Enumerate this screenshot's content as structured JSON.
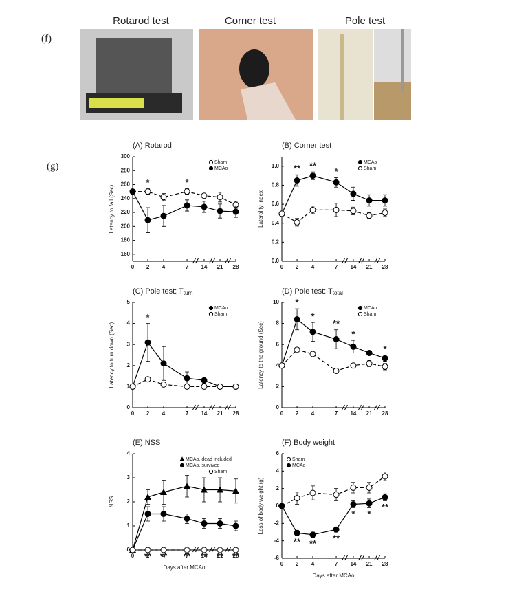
{
  "panel_labels": [
    "(f)",
    "(g)"
  ],
  "photos": [
    {
      "label": "Rotarod test"
    },
    {
      "label": "Corner test"
    },
    {
      "label": "Pole test"
    }
  ],
  "chart_data": [
    {
      "type": "line",
      "title": "(A) Rotarod",
      "ylabel": "Latency to fall (Sec)",
      "categories": [
        "0",
        "2",
        "4",
        "7",
        "14",
        "21",
        "28"
      ],
      "ylim": [
        150,
        300
      ],
      "yticks": [
        160,
        180,
        200,
        220,
        240,
        260,
        280,
        300
      ],
      "legend": "upper right",
      "series": [
        {
          "name": "Sham",
          "color": "#000000",
          "marker": "circle-open",
          "dashed": true,
          "values": [
            250,
            250,
            242,
            250,
            244,
            242,
            231
          ],
          "errors": [
            0,
            4,
            5,
            4,
            3,
            7,
            5
          ]
        },
        {
          "name": "MCAo",
          "color": "#000000",
          "marker": "circle-filled",
          "dashed": false,
          "values": [
            250,
            209,
            215,
            230,
            228,
            222,
            221
          ],
          "errors": [
            0,
            18,
            15,
            8,
            8,
            10,
            8
          ]
        }
      ],
      "significance": [
        null,
        "*",
        null,
        "*",
        null,
        null,
        null
      ],
      "significance_position": "above"
    },
    {
      "type": "line",
      "title": "(B) Corner test",
      "ylabel": "Laterality index",
      "categories": [
        "0",
        "2",
        "4",
        "7",
        "14",
        "21",
        "28"
      ],
      "ylim": [
        0,
        1.1
      ],
      "yticks": [
        {
          "value": 0,
          "label": "0.0"
        },
        0.2,
        0.4,
        0.6,
        0.8,
        {
          "value": 1,
          "label": "1.0"
        }
      ],
      "legend": "upper right",
      "series": [
        {
          "name": "MCAo",
          "color": "#000000",
          "marker": "circle-filled",
          "dashed": false,
          "values": [
            0.5,
            0.85,
            0.9,
            0.83,
            0.71,
            0.64,
            0.64
          ],
          "errors": [
            0,
            0.06,
            0.04,
            0.05,
            0.07,
            0.06,
            0.06
          ]
        },
        {
          "name": "Sham",
          "color": "#000000",
          "marker": "circle-open",
          "dashed": true,
          "values": [
            0.5,
            0.41,
            0.54,
            0.54,
            0.53,
            0.48,
            0.51
          ],
          "errors": [
            0,
            0.04,
            0.04,
            0.07,
            0.04,
            0.03,
            0.04
          ]
        }
      ],
      "significance": [
        null,
        "**",
        "**",
        "*",
        null,
        null,
        null
      ],
      "significance_position": "above"
    },
    {
      "type": "line",
      "title": "(C) Pole test: T",
      "title_subscript": "turn",
      "ylabel": "Latency to turn down (Sec)",
      "categories": [
        "0",
        "2",
        "4",
        "7",
        "14",
        "21",
        "28"
      ],
      "ylim": [
        0,
        5
      ],
      "yticks": [
        0,
        1,
        2,
        3,
        4,
        5
      ],
      "legend": "upper right",
      "series": [
        {
          "name": "MCAo",
          "color": "#000000",
          "marker": "circle-filled",
          "dashed": false,
          "values": [
            1,
            3.1,
            2.1,
            1.4,
            1.3,
            1.0,
            1.0
          ],
          "errors": [
            0,
            0.9,
            0.8,
            0.3,
            0.15,
            0.1,
            0
          ]
        },
        {
          "name": "Sham",
          "color": "#000000",
          "marker": "circle-open",
          "dashed": true,
          "values": [
            1,
            1.35,
            1.1,
            1.0,
            1.0,
            1.0,
            1.0
          ],
          "errors": [
            0,
            0.1,
            0.05,
            0.05,
            0.05,
            0.05,
            0
          ]
        }
      ],
      "significance": [
        null,
        "*",
        null,
        null,
        null,
        null,
        null
      ],
      "significance_position": "above"
    },
    {
      "type": "line",
      "title": "(D) Pole test: T",
      "title_subscript": "total",
      "ylabel": "Latency to the ground (Sec)",
      "categories": [
        "0",
        "2",
        "4",
        "7",
        "14",
        "21",
        "28"
      ],
      "ylim": [
        0,
        10
      ],
      "yticks": [
        0,
        2,
        4,
        6,
        8,
        10
      ],
      "legend": "upper right",
      "series": [
        {
          "name": "MCAo",
          "color": "#000000",
          "marker": "circle-filled",
          "dashed": false,
          "values": [
            4,
            8.4,
            7.2,
            6.5,
            5.8,
            5.2,
            4.7
          ],
          "errors": [
            0,
            1,
            0.9,
            0.9,
            0.6,
            0.2,
            0.3
          ]
        },
        {
          "name": "Sham",
          "color": "#000000",
          "marker": "circle-open",
          "dashed": true,
          "values": [
            4,
            5.5,
            5.1,
            3.5,
            4.0,
            4.2,
            3.9
          ],
          "errors": [
            0,
            0.2,
            0.3,
            0.2,
            0.2,
            0.3,
            0.3
          ]
        }
      ],
      "significance": [
        null,
        "*",
        "*",
        "**",
        "*",
        null,
        "*"
      ],
      "significance_position": "above"
    },
    {
      "type": "line",
      "title": "(E) NSS",
      "ylabel": "NSS",
      "xlabel": "Days after MCAo",
      "categories": [
        "0",
        "2",
        "4",
        "7",
        "14",
        "21",
        "28"
      ],
      "ylim": [
        0,
        4
      ],
      "yticks": [
        0,
        1,
        2,
        3,
        4
      ],
      "legend": "upper right",
      "series": [
        {
          "name": "MCAo, dead included",
          "color": "#000000",
          "marker": "triangle",
          "dashed": false,
          "values": [
            0,
            2.2,
            2.4,
            2.65,
            2.5,
            2.5,
            2.45
          ],
          "errors": [
            0,
            0.3,
            0.5,
            0.45,
            0.5,
            0.5,
            0.5
          ]
        },
        {
          "name": "MCAo, survived",
          "color": "#000000",
          "marker": "circle-filled",
          "dashed": false,
          "values": [
            0,
            1.5,
            1.5,
            1.3,
            1.1,
            1.1,
            1.0
          ],
          "errors": [
            0,
            0.3,
            0.3,
            0.2,
            0.2,
            0.2,
            0.2
          ]
        },
        {
          "name": "Sham",
          "color": "#000000",
          "marker": "circle-open",
          "dashed": true,
          "values": [
            0,
            0,
            0,
            0,
            0,
            0,
            0
          ],
          "errors": [
            0,
            0,
            0,
            0,
            0,
            0,
            0
          ]
        }
      ],
      "significance": [
        null,
        "**",
        "**",
        "**",
        "**",
        "**",
        "**"
      ],
      "significance_position": "below"
    },
    {
      "type": "line",
      "title": "(F) Body weight",
      "ylabel": "Loss of body weight (g)",
      "xlabel": "Days after MCAo",
      "categories": [
        "0",
        "2",
        "4",
        "7",
        "14",
        "21",
        "28"
      ],
      "ylim": [
        -6,
        6
      ],
      "yticks": [
        -6,
        -4,
        -2,
        0,
        2,
        4,
        6
      ],
      "legend": "upper left",
      "series": [
        {
          "name": "Sham",
          "color": "#000000",
          "marker": "circle-open",
          "dashed": true,
          "values": [
            0,
            0.9,
            1.5,
            1.3,
            2.1,
            2.1,
            3.4
          ],
          "errors": [
            0,
            0.7,
            0.8,
            0.7,
            0.6,
            0.6,
            0.5
          ]
        },
        {
          "name": "MCAo",
          "color": "#000000",
          "marker": "circle-filled",
          "dashed": false,
          "values": [
            0,
            -3.1,
            -3.3,
            -2.7,
            0.2,
            0.3,
            1.0
          ],
          "errors": [
            0,
            0.3,
            0.3,
            0.3,
            0.4,
            0.5,
            0.4
          ]
        }
      ],
      "significance": [
        null,
        "**",
        "**",
        "**",
        "*",
        "*",
        "**"
      ],
      "significance_position": "below"
    }
  ]
}
